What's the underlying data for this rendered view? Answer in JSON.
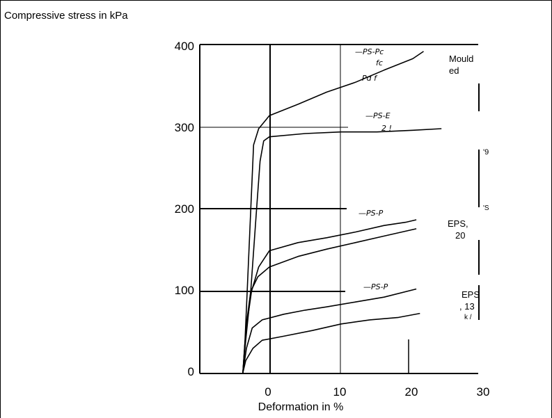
{
  "chart_data": {
    "type": "line",
    "title": "Compressive stress in kPa",
    "xlabel": "Deformation in %",
    "ylabel": "",
    "xlim": [
      -4,
      35
    ],
    "ylim": [
      -5,
      410
    ],
    "x_ticks": [
      "0",
      "10",
      "20",
      "30"
    ],
    "y_ticks": [
      "0",
      "100",
      "200",
      "300",
      "400"
    ],
    "grid": true,
    "series": [
      {
        "values": [
          [
            -3.7,
            0
          ],
          [
            -3.4,
            40
          ],
          [
            -3.1,
            100
          ],
          [
            -2.6,
            200
          ],
          [
            -2.2,
            280
          ],
          [
            -1.5,
            300
          ],
          [
            0,
            316
          ],
          [
            4,
            330
          ],
          [
            8,
            345
          ],
          [
            12,
            357
          ],
          [
            16,
            372
          ],
          [
            20,
            386
          ],
          [
            21.5,
            395
          ]
        ]
      },
      {
        "values": [
          [
            -3.7,
            0
          ],
          [
            -3.3,
            40
          ],
          [
            -2.6,
            100
          ],
          [
            -1.8,
            200
          ],
          [
            -1.3,
            260
          ],
          [
            -0.8,
            285
          ],
          [
            0,
            290
          ],
          [
            5,
            294
          ],
          [
            10,
            296
          ],
          [
            15,
            296
          ],
          [
            20,
            298
          ],
          [
            24,
            300
          ]
        ]
      },
      {
        "values": [
          [
            -3.7,
            0
          ],
          [
            -3.3,
            50
          ],
          [
            -2.5,
            100
          ],
          [
            -1.5,
            130
          ],
          [
            0,
            150
          ],
          [
            4,
            160
          ],
          [
            8,
            166
          ],
          [
            12,
            173
          ],
          [
            16,
            181
          ],
          [
            19,
            185
          ],
          [
            20.5,
            188
          ]
        ]
      },
      {
        "values": [
          [
            -3.7,
            0
          ],
          [
            -3.2,
            60
          ],
          [
            -2.6,
            100
          ],
          [
            -1.6,
            118
          ],
          [
            0,
            130
          ],
          [
            4,
            143
          ],
          [
            8,
            152
          ],
          [
            12,
            160
          ],
          [
            16,
            168
          ],
          [
            20.5,
            177
          ]
        ]
      },
      {
        "values": [
          [
            -3.7,
            0
          ],
          [
            -3.2,
            30
          ],
          [
            -2.4,
            55
          ],
          [
            -1,
            65
          ],
          [
            2,
            72
          ],
          [
            5,
            77
          ],
          [
            8,
            81
          ],
          [
            12,
            87
          ],
          [
            16,
            93
          ],
          [
            20.5,
            103
          ]
        ]
      },
      {
        "values": [
          [
            -3.7,
            0
          ],
          [
            -3.3,
            15
          ],
          [
            -2.3,
            30
          ],
          [
            -1,
            40
          ],
          [
            2,
            45
          ],
          [
            6,
            52
          ],
          [
            10,
            60
          ],
          [
            14,
            65
          ],
          [
            18,
            68
          ],
          [
            21,
            73
          ]
        ]
      }
    ],
    "curve_labels": [
      "PS-Pc",
      "PS-E",
      "PS-P",
      "PS-P"
    ],
    "curve_sublabels": [
      "fc",
      "Pd f",
      "2 !"
    ],
    "legend_fragments": [
      "Mould",
      "ed",
      "EPS,",
      "20",
      "EPS",
      ",  13",
      "k /",
      "'9",
      "'S"
    ]
  }
}
